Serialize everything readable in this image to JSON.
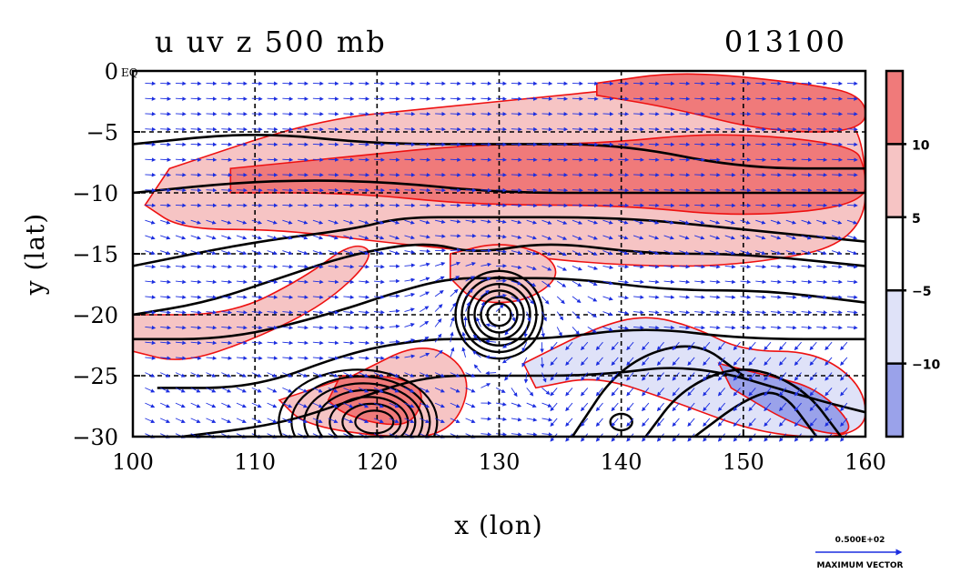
{
  "chart_data": {
    "type": "contour",
    "title": "u uv z 500 mb",
    "timestamp": "013100",
    "xlabel": "x (lon)",
    "ylabel": "y (lat)",
    "xlim": [
      100,
      160
    ],
    "ylim": [
      -30,
      0
    ],
    "x_ticks": [
      100,
      110,
      120,
      130,
      140,
      150,
      160
    ],
    "x_tick_labels": [
      "100",
      "110",
      "120",
      "130",
      "140",
      "150",
      "160"
    ],
    "y_ticks": [
      0,
      -5,
      -10,
      -15,
      -20,
      -25,
      -30
    ],
    "y_tick_labels": [
      "0",
      "−5",
      "−10",
      "−15",
      "−20",
      "−25",
      "−30"
    ],
    "eq_label": "EQ",
    "grid_dashed_x": [
      110,
      120,
      130,
      140,
      150
    ],
    "grid_dashed_y": [
      -5,
      -10,
      -15,
      -20,
      -25
    ],
    "colorbar": {
      "levels": [
        -10,
        -5,
        5,
        10
      ],
      "labels": [
        "−10",
        "−5",
        "5",
        "10"
      ],
      "colors": [
        "#9aa2ea",
        "#dfe2f8",
        "#ffffff",
        "#f6c4c4",
        "#f07a7a"
      ]
    },
    "fill_regions": [
      {
        "level": "5-10",
        "color": "#f6c4c4",
        "lon": [
          103,
          115,
          125,
          135,
          145,
          158,
          160,
          160,
          150,
          140,
          130,
          120,
          112,
          104,
          101
        ],
        "lat": [
          -8,
          -4,
          -3,
          -2,
          -1,
          -3,
          -6,
          -14,
          -16,
          -16,
          -15,
          -14,
          -13,
          -13,
          -11
        ]
      },
      {
        "level": ">10",
        "color": "#f07a7a",
        "lon": [
          108,
          118,
          128,
          138,
          148,
          159,
          160,
          160,
          150,
          140,
          128,
          118,
          108
        ],
        "lat": [
          -8,
          -7,
          -6,
          -6,
          -5,
          -6,
          -8,
          -11,
          -12,
          -11,
          -11,
          -10,
          -10
        ]
      },
      {
        "level": ">10",
        "color": "#f07a7a",
        "lon": [
          138,
          145,
          155,
          160,
          160,
          152,
          144,
          138
        ],
        "lat": [
          -1,
          0,
          -1,
          -2,
          -5,
          -5,
          -3,
          -2
        ]
      },
      {
        "level": "5-10",
        "color": "#f6c4c4",
        "lon": [
          100,
          108,
          114,
          118,
          120,
          116,
          110,
          104,
          100
        ],
        "lat": [
          -20,
          -20,
          -17,
          -14,
          -15,
          -19,
          -22,
          -24,
          -23
        ]
      },
      {
        "level": "5-10",
        "color": "#f6c4c4",
        "lon": [
          118,
          124,
          128,
          126,
          120,
          114,
          112
        ],
        "lat": [
          -25,
          -22,
          -25,
          -30,
          -30,
          -29,
          -27
        ]
      },
      {
        "level": ">10",
        "color": "#f07a7a",
        "lon": [
          117,
          121,
          124,
          123,
          120,
          117,
          116
        ],
        "lat": [
          -25,
          -25,
          -26,
          -29,
          -29,
          -28,
          -27
        ]
      },
      {
        "level": "5-10",
        "color": "#f6c4c4",
        "lon": [
          126,
          130,
          134,
          135,
          132,
          128,
          126
        ],
        "lat": [
          -15,
          -14,
          -15,
          -17,
          -19,
          -19,
          -17
        ]
      },
      {
        "level": "-5--10",
        "color": "#dfe2f8",
        "lon": [
          132,
          138,
          142,
          146,
          150,
          156,
          160,
          160,
          152,
          144,
          138,
          133
        ],
        "lat": [
          -24,
          -21,
          -20,
          -21,
          -23,
          -23,
          -26,
          -30,
          -30,
          -27,
          -25,
          -26
        ]
      },
      {
        "level": "<-10",
        "color": "#9aa2ea",
        "lon": [
          148,
          152,
          156,
          159,
          158,
          154,
          149
        ],
        "lat": [
          -24,
          -25,
          -26,
          -29,
          -30,
          -29,
          -26
        ]
      }
    ],
    "height_contours": [
      {
        "lon": [
          100,
          110,
          120,
          130,
          140,
          150,
          160
        ],
        "lat": [
          -6,
          -5,
          -6,
          -6,
          -6,
          -8,
          -8
        ]
      },
      {
        "lon": [
          100,
          110,
          120,
          130,
          140,
          150,
          160
        ],
        "lat": [
          -10,
          -9,
          -9,
          -10,
          -10,
          -10,
          -10
        ]
      },
      {
        "lon": [
          100,
          110,
          118,
          122,
          128,
          140,
          150,
          160
        ],
        "lat": [
          -16,
          -14,
          -13,
          -12,
          -12,
          -12,
          -13,
          -14
        ]
      },
      {
        "lon": [
          100,
          106,
          112,
          118,
          124,
          128,
          134,
          142,
          150,
          160
        ],
        "lat": [
          -20,
          -19,
          -17,
          -15,
          -14,
          -15,
          -14,
          -15,
          -15,
          -16
        ]
      },
      {
        "lon": [
          100,
          108,
          116,
          122,
          126,
          130,
          136,
          144,
          152,
          160
        ],
        "lat": [
          -22,
          -22,
          -20,
          -18,
          -17,
          -17,
          -17,
          -18,
          -18,
          -19
        ]
      },
      {
        "lon": [
          102,
          110,
          118,
          124,
          128,
          134,
          142,
          150,
          160
        ],
        "lat": [
          -26,
          -26,
          -23,
          -22,
          -22,
          -22,
          -21,
          -22,
          -22
        ]
      },
      {
        "lon": [
          104,
          112,
          118,
          124,
          130,
          138,
          146,
          156,
          160
        ],
        "lat": [
          -30,
          -29,
          -27,
          -25,
          -25,
          -25,
          -24,
          -27,
          -28
        ]
      },
      {
        "lon": [
          142,
          145,
          150,
          155,
          158
        ],
        "lat": [
          -30,
          -26,
          -24,
          -26,
          -30
        ]
      },
      {
        "lon": [
          146,
          150,
          153,
          156
        ],
        "lat": [
          -30,
          -27,
          -26,
          -30
        ]
      },
      {
        "lon": [
          136,
          140,
          146,
          150
        ],
        "lat": [
          -30,
          -24,
          -22,
          -25
        ]
      }
    ],
    "low_center": {
      "lon": 130,
      "lat": -20,
      "rings": 6
    },
    "high_center": {
      "lon": 120,
      "lat": -28.5,
      "rings": 7
    },
    "small_low": {
      "lon": 140,
      "lat": -28.8
    },
    "vector_color": "#1c2ee0",
    "max_vector_value": "0.500E+02",
    "max_vector_label": "MAXIMUM VECTOR"
  }
}
